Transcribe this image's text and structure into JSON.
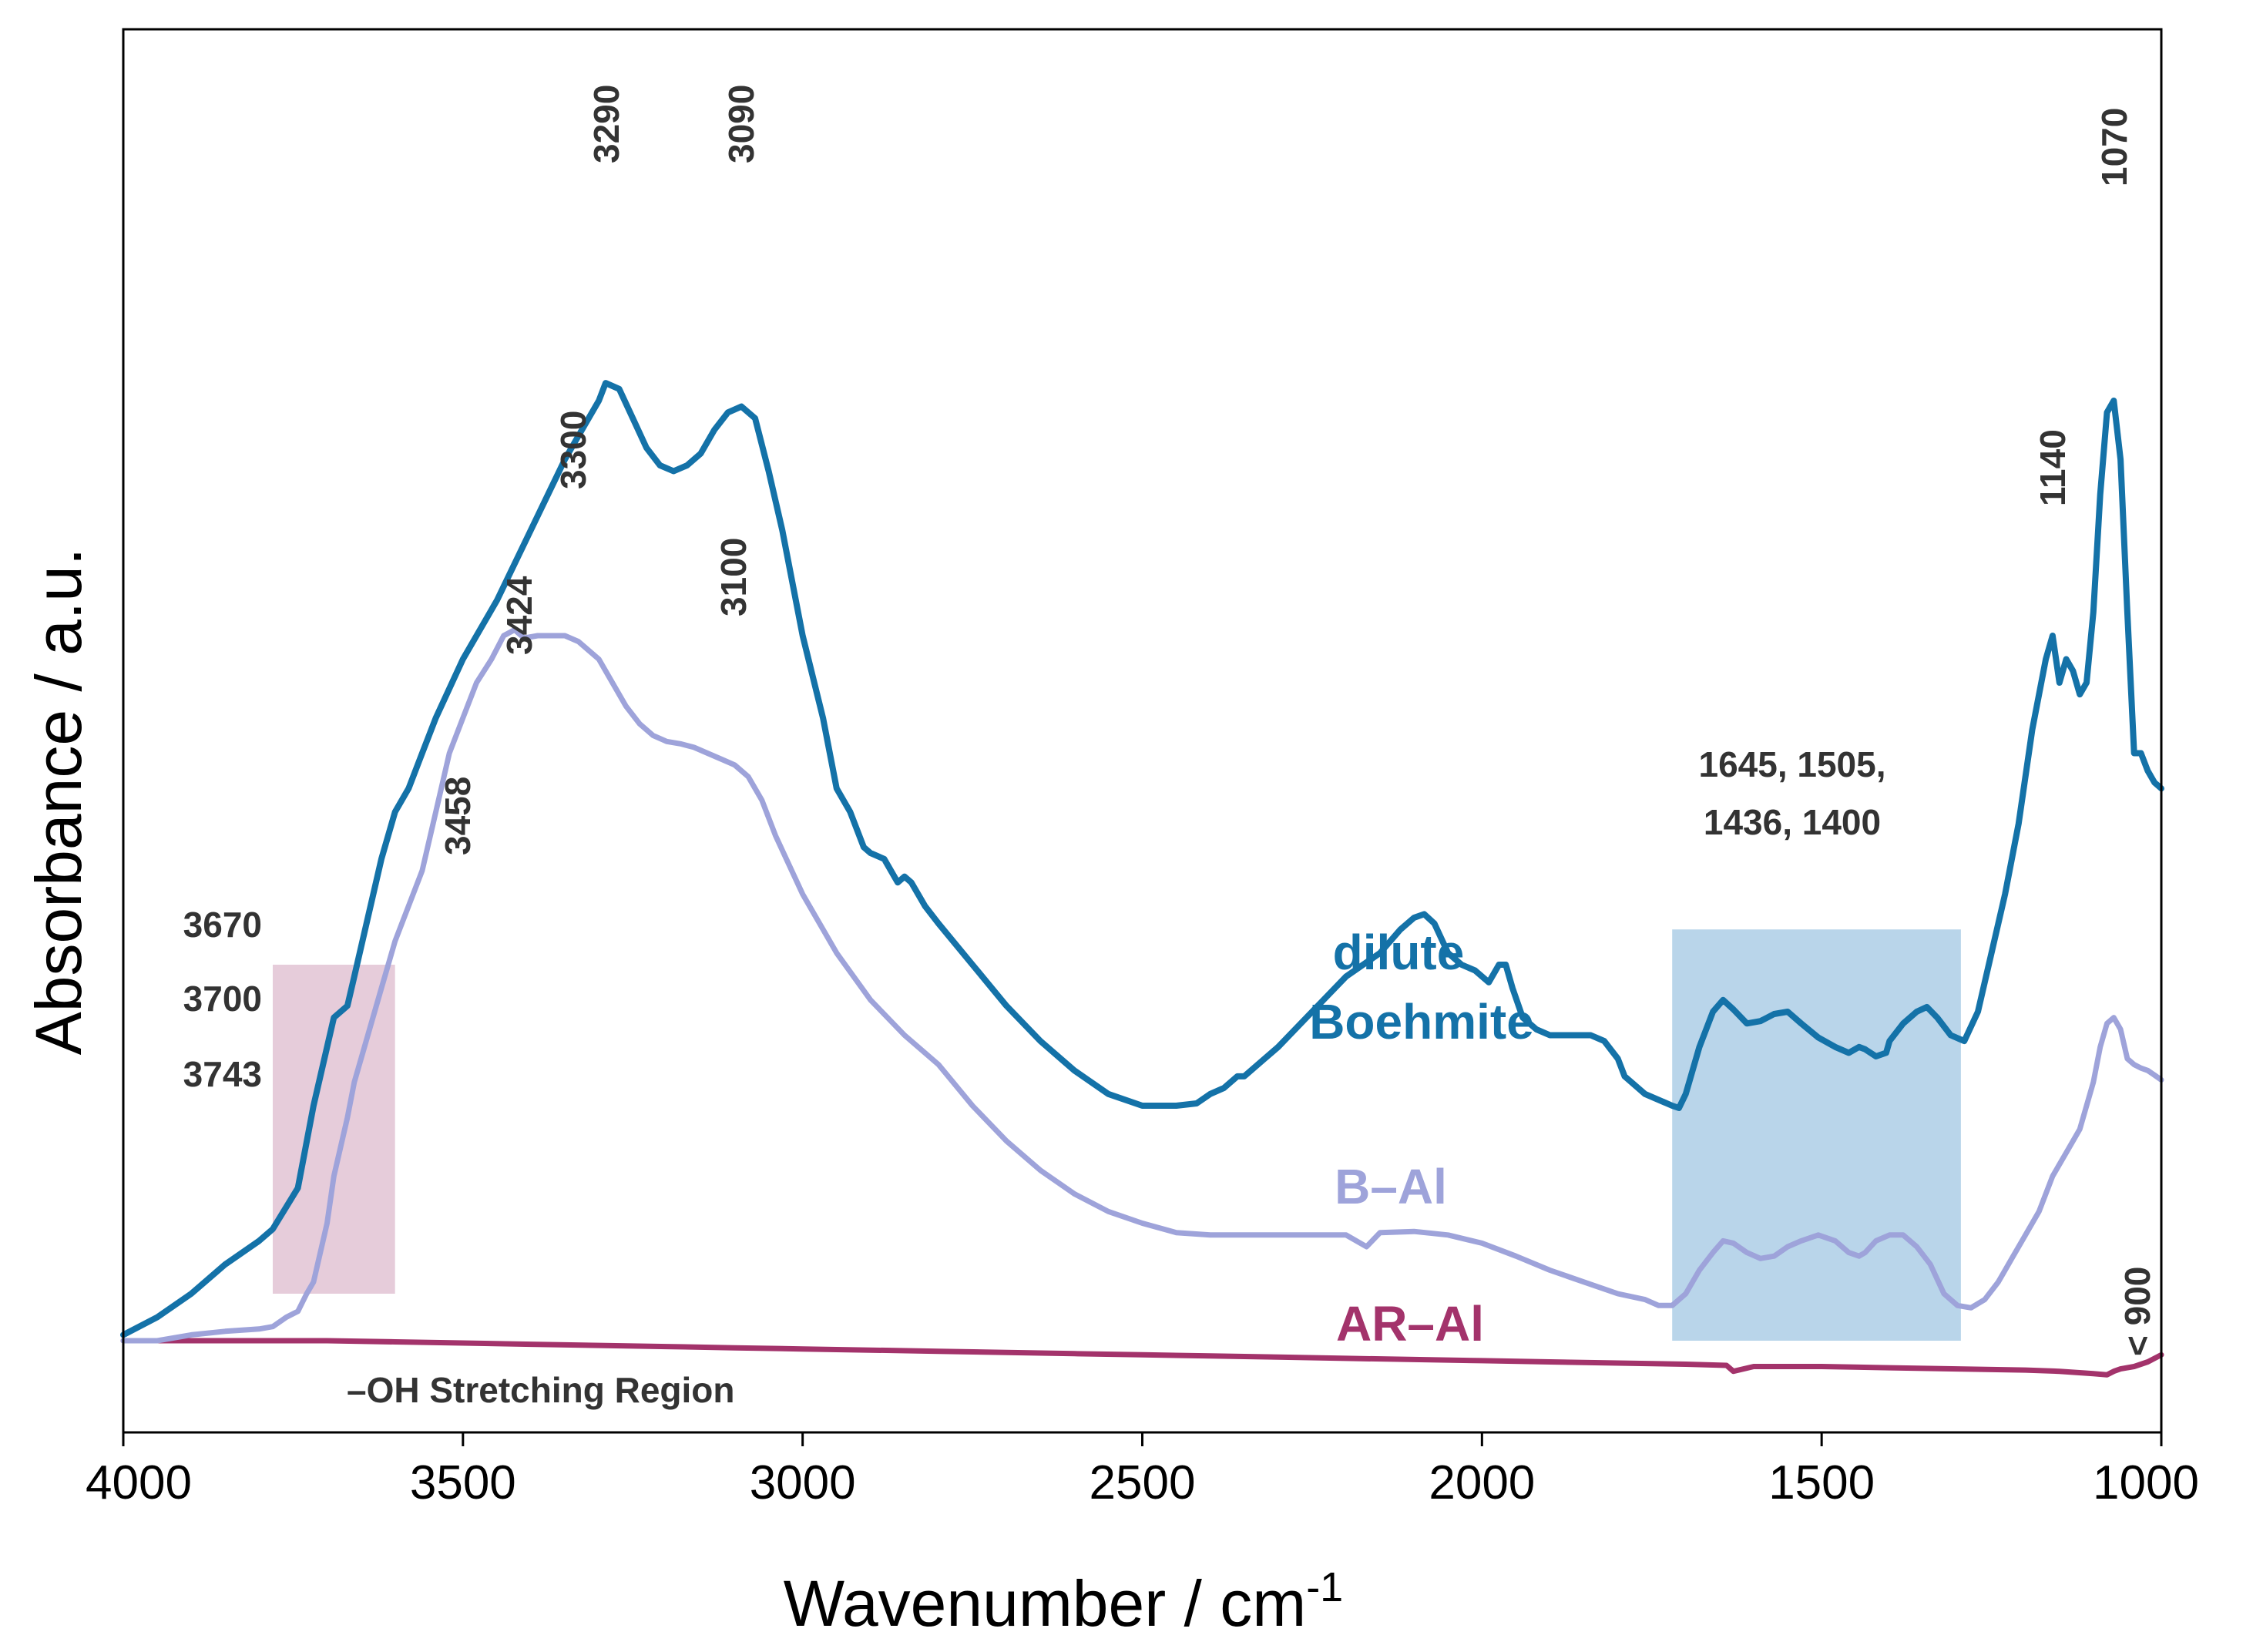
{
  "chart_data": {
    "type": "line",
    "xlabel": "Wavenumber / cm",
    "xlabel_superscript": "-1",
    "ylabel": "Absorbance / a.u.",
    "xlim": [
      4000,
      1000
    ],
    "ylim": [
      0,
      1.0
    ],
    "x_ticks": [
      "4000",
      "3500",
      "3000",
      "2500",
      "2000",
      "1500",
      "1000"
    ],
    "x_tick_values": [
      4000,
      3500,
      3000,
      2500,
      2000,
      1500,
      1000
    ],
    "grid": false,
    "colors": {
      "boehmite": "#1472a8",
      "bal": "#9ea3da",
      "aral": "#a3336b",
      "pink_region": "#d6aac2",
      "blue_region": "#8ab9dc",
      "annotation": "#333333"
    },
    "series": [
      {
        "name": "dilute Boehmite",
        "key": "boehmite",
        "x": [
          4000,
          3950,
          3900,
          3850,
          3800,
          3780,
          3743,
          3720,
          3700,
          3690,
          3670,
          3660,
          3640,
          3620,
          3600,
          3580,
          3560,
          3540,
          3500,
          3450,
          3400,
          3350,
          3320,
          3300,
          3290,
          3270,
          3250,
          3230,
          3210,
          3190,
          3170,
          3150,
          3130,
          3110,
          3090,
          3070,
          3050,
          3030,
          3000,
          2970,
          2950,
          2930,
          2910,
          2900,
          2880,
          2860,
          2850,
          2840,
          2820,
          2800,
          2750,
          2700,
          2650,
          2600,
          2550,
          2500,
          2450,
          2420,
          2400,
          2380,
          2360,
          2350,
          2320,
          2300,
          2250,
          2200,
          2150,
          2120,
          2100,
          2085,
          2070,
          2050,
          2030,
          2010,
          1990,
          1975,
          1965,
          1955,
          1940,
          1920,
          1900,
          1880,
          1860,
          1840,
          1820,
          1800,
          1790,
          1760,
          1740,
          1720,
          1710,
          1700,
          1680,
          1660,
          1645,
          1630,
          1610,
          1590,
          1570,
          1550,
          1530,
          1505,
          1480,
          1460,
          1445,
          1436,
          1420,
          1405,
          1400,
          1380,
          1360,
          1345,
          1330,
          1310,
          1290,
          1270,
          1250,
          1230,
          1210,
          1190,
          1170,
          1160,
          1150,
          1140,
          1130,
          1120,
          1110,
          1100,
          1090,
          1080,
          1070,
          1060,
          1050,
          1040,
          1030,
          1020,
          1010,
          1000
        ],
        "y": [
          0.005,
          0.02,
          0.04,
          0.065,
          0.085,
          0.095,
          0.13,
          0.2,
          0.25,
          0.275,
          0.285,
          0.31,
          0.36,
          0.41,
          0.45,
          0.47,
          0.5,
          0.53,
          0.58,
          0.63,
          0.69,
          0.75,
          0.78,
          0.8,
          0.815,
          0.81,
          0.785,
          0.76,
          0.745,
          0.74,
          0.745,
          0.755,
          0.775,
          0.79,
          0.795,
          0.785,
          0.74,
          0.69,
          0.6,
          0.53,
          0.47,
          0.45,
          0.42,
          0.415,
          0.41,
          0.39,
          0.395,
          0.39,
          0.37,
          0.355,
          0.32,
          0.285,
          0.255,
          0.23,
          0.21,
          0.2,
          0.2,
          0.202,
          0.21,
          0.215,
          0.225,
          0.225,
          0.24,
          0.25,
          0.28,
          0.31,
          0.33,
          0.35,
          0.36,
          0.363,
          0.355,
          0.33,
          0.32,
          0.315,
          0.305,
          0.32,
          0.32,
          0.3,
          0.275,
          0.265,
          0.26,
          0.26,
          0.26,
          0.26,
          0.255,
          0.24,
          0.225,
          0.21,
          0.205,
          0.2,
          0.198,
          0.21,
          0.25,
          0.28,
          0.29,
          0.282,
          0.27,
          0.272,
          0.278,
          0.28,
          0.27,
          0.258,
          0.25,
          0.245,
          0.25,
          0.248,
          0.242,
          0.245,
          0.255,
          0.27,
          0.28,
          0.284,
          0.275,
          0.26,
          0.255,
          0.28,
          0.33,
          0.38,
          0.44,
          0.52,
          0.58,
          0.6,
          0.56,
          0.58,
          0.57,
          0.55,
          0.56,
          0.62,
          0.72,
          0.79,
          0.8,
          0.75,
          0.62,
          0.5,
          0.5,
          0.485,
          0.475,
          0.47
        ]
      },
      {
        "name": "B–Al",
        "key": "bal",
        "x": [
          4000,
          3950,
          3900,
          3850,
          3800,
          3780,
          3760,
          3743,
          3730,
          3720,
          3700,
          3690,
          3670,
          3660,
          3640,
          3620,
          3600,
          3580,
          3560,
          3540,
          3520,
          3500,
          3480,
          3458,
          3440,
          3424,
          3410,
          3390,
          3370,
          3350,
          3330,
          3300,
          3280,
          3260,
          3240,
          3220,
          3200,
          3180,
          3160,
          3140,
          3120,
          3100,
          3080,
          3060,
          3040,
          3000,
          2950,
          2900,
          2850,
          2800,
          2750,
          2700,
          2650,
          2600,
          2550,
          2500,
          2450,
          2400,
          2350,
          2300,
          2250,
          2200,
          2170,
          2150,
          2100,
          2050,
          2000,
          1950,
          1900,
          1850,
          1800,
          1760,
          1740,
          1720,
          1700,
          1680,
          1660,
          1645,
          1630,
          1610,
          1590,
          1570,
          1550,
          1530,
          1505,
          1480,
          1460,
          1445,
          1436,
          1420,
          1400,
          1380,
          1360,
          1340,
          1320,
          1300,
          1280,
          1260,
          1240,
          1220,
          1200,
          1180,
          1160,
          1140,
          1120,
          1110,
          1100,
          1090,
          1080,
          1070,
          1060,
          1050,
          1040,
          1030,
          1020,
          1010,
          1000
        ],
        "y": [
          0.0,
          0.0,
          0.005,
          0.008,
          0.01,
          0.012,
          0.02,
          0.025,
          0.04,
          0.05,
          0.1,
          0.14,
          0.19,
          0.22,
          0.26,
          0.3,
          0.34,
          0.37,
          0.4,
          0.45,
          0.5,
          0.53,
          0.56,
          0.58,
          0.6,
          0.605,
          0.598,
          0.6,
          0.6,
          0.6,
          0.595,
          0.58,
          0.56,
          0.54,
          0.525,
          0.515,
          0.51,
          0.508,
          0.505,
          0.5,
          0.495,
          0.49,
          0.48,
          0.46,
          0.43,
          0.38,
          0.33,
          0.29,
          0.26,
          0.235,
          0.2,
          0.17,
          0.145,
          0.125,
          0.11,
          0.1,
          0.092,
          0.09,
          0.09,
          0.09,
          0.09,
          0.09,
          0.08,
          0.092,
          0.093,
          0.09,
          0.083,
          0.072,
          0.06,
          0.05,
          0.04,
          0.035,
          0.03,
          0.03,
          0.04,
          0.06,
          0.075,
          0.085,
          0.083,
          0.075,
          0.07,
          0.072,
          0.08,
          0.085,
          0.09,
          0.085,
          0.075,
          0.072,
          0.075,
          0.085,
          0.09,
          0.09,
          0.08,
          0.065,
          0.04,
          0.03,
          0.028,
          0.035,
          0.05,
          0.07,
          0.09,
          0.11,
          0.14,
          0.16,
          0.18,
          0.2,
          0.22,
          0.25,
          0.27,
          0.275,
          0.265,
          0.24,
          0.235,
          0.232,
          0.23,
          0.226,
          0.222
        ]
      },
      {
        "name": "AR–Al",
        "key": "aral",
        "x": [
          4000,
          3900,
          3800,
          3700,
          3600,
          3500,
          3400,
          3300,
          3200,
          3100,
          3000,
          2900,
          2800,
          2700,
          2600,
          2500,
          2400,
          2300,
          2200,
          2100,
          2000,
          1900,
          1800,
          1700,
          1640,
          1630,
          1600,
          1500,
          1400,
          1300,
          1200,
          1150,
          1100,
          1080,
          1070,
          1060,
          1040,
          1020,
          1000
        ],
        "y": [
          0.0,
          0.0,
          0.0,
          0.0,
          -0.001,
          -0.002,
          -0.003,
          -0.004,
          -0.005,
          -0.006,
          -0.007,
          -0.008,
          -0.009,
          -0.01,
          -0.011,
          -0.012,
          -0.013,
          -0.014,
          -0.015,
          -0.016,
          -0.017,
          -0.018,
          -0.019,
          -0.02,
          -0.021,
          -0.026,
          -0.022,
          -0.022,
          -0.023,
          -0.024,
          -0.025,
          -0.026,
          -0.028,
          -0.029,
          -0.026,
          -0.024,
          -0.022,
          -0.018,
          -0.012
        ]
      }
    ],
    "series_labels": {
      "boehmite_line1": "dilute",
      "boehmite_line2": "Boehmite",
      "bal": "B–Al",
      "aral": "AR–Al"
    },
    "annotations": {
      "p3290": "3290",
      "p3090": "3090",
      "p1070": "1070",
      "p1140": "1140",
      "p3300": "3300",
      "p3100": "3100",
      "p3424": "3424",
      "p3458": "3458",
      "p3670": "3670",
      "p3700": "3700",
      "p3743": "3743",
      "group_line1": "1645, 1505,",
      "group_line2": "1436, 1400",
      "p900": "< 900",
      "oh_region": "–OH Stretching Region"
    },
    "shaded_regions": [
      {
        "name": "oh-stretch-region",
        "x_from": 3780,
        "x_to": 3600,
        "y_from": 0.04,
        "y_to": 0.32,
        "color_key": "pink_region"
      },
      {
        "name": "carbonate-region",
        "x_from": 1720,
        "x_to": 1295,
        "y_from": 0.0,
        "y_to": 0.35,
        "color_key": "blue_region"
      }
    ]
  }
}
